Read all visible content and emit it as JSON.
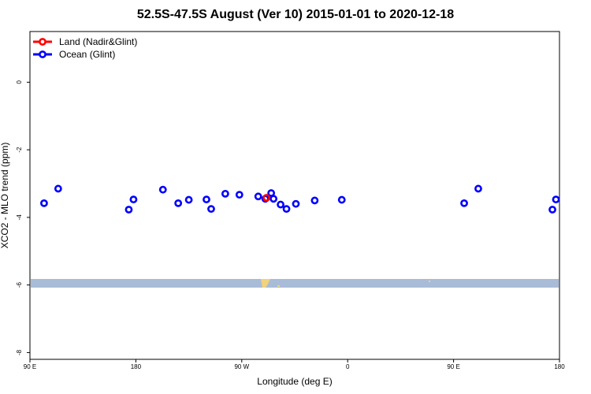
{
  "chart_data": {
    "type": "scatter",
    "title": "52.5S-47.5S August (Ver 10)   2015-01-01 to 2020-12-18",
    "xlabel": "Longitude (deg E)",
    "ylabel": "XCO2 - MLO trend (ppm)",
    "xlim": [
      90,
      540
    ],
    "ylim": [
      -8.2,
      1.5
    ],
    "x_ticks": [
      {
        "value": 90,
        "label": "90 E"
      },
      {
        "value": 180,
        "label": "180"
      },
      {
        "value": 270,
        "label": "90 W"
      },
      {
        "value": 360,
        "label": "0"
      },
      {
        "value": 450,
        "label": "90 E"
      },
      {
        "value": 540,
        "label": "180"
      }
    ],
    "y_ticks": [
      {
        "value": 0,
        "label": "0"
      },
      {
        "value": -2,
        "label": "-2"
      },
      {
        "value": -4,
        "label": "-4"
      },
      {
        "value": -6,
        "label": "-6"
      },
      {
        "value": -8,
        "label": "-8"
      }
    ],
    "legend_position": "top-left",
    "series": [
      {
        "name": "Land (Nadir&Glint)",
        "color": "#ff0000",
        "x": [
          291
        ],
        "y": [
          -3.42
        ]
      },
      {
        "name": "Ocean (Glint)",
        "color": "#0000ff",
        "x": [
          102,
          114,
          174,
          178,
          203,
          216,
          225,
          240,
          244,
          256,
          268,
          284,
          290,
          295,
          297,
          303,
          308,
          316,
          332,
          355,
          459,
          471,
          534,
          537
        ],
        "y": [
          -3.58,
          -3.15,
          -3.77,
          -3.47,
          -3.18,
          -3.58,
          -3.48,
          -3.47,
          -3.75,
          -3.3,
          -3.33,
          -3.38,
          -3.45,
          -3.28,
          -3.45,
          -3.62,
          -3.75,
          -3.6,
          -3.5,
          -3.48,
          -3.58,
          -3.15,
          -3.77,
          -3.47
        ]
      }
    ]
  },
  "colors": {
    "map_ocean": "#a8bcd8",
    "map_land": "#f2d27a"
  }
}
